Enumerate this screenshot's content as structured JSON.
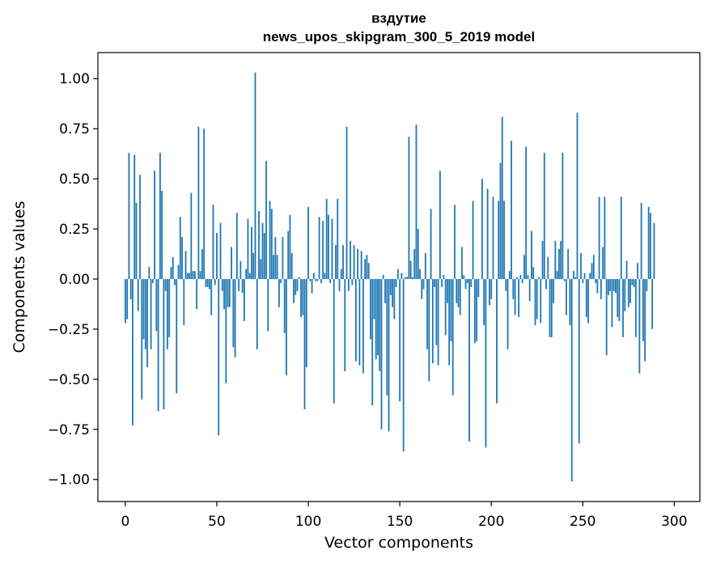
{
  "chart_data": {
    "type": "bar",
    "title_line1": "вздутие",
    "title_line2": "news_upos_skipgram_300_5_2019 model",
    "xlabel": "Vector components",
    "ylabel": "Components values",
    "xlim": [
      -15,
      314
    ],
    "ylim": [
      -1.11,
      1.13
    ],
    "xticks": [
      0,
      50,
      100,
      150,
      200,
      250,
      300
    ],
    "xtick_labels": [
      "0",
      "50",
      "100",
      "150",
      "200",
      "250",
      "300"
    ],
    "yticks": [
      1.0,
      0.75,
      0.5,
      0.25,
      0.0,
      -0.25,
      -0.5,
      -0.75,
      -1.0
    ],
    "ytick_labels": [
      "1.00",
      "0.75",
      "0.50",
      "0.25",
      "0.00",
      "−0.25",
      "−0.50",
      "−0.75",
      "−1.00"
    ],
    "bar_color": "#1f77b4",
    "values": [
      -0.22,
      -0.2,
      0.63,
      -0.1,
      -0.73,
      0.62,
      0.38,
      -0.16,
      0.52,
      -0.6,
      -0.3,
      -0.35,
      -0.44,
      0.06,
      -0.35,
      -0.02,
      0.54,
      -0.26,
      -0.66,
      0.63,
      0.44,
      -0.65,
      -0.06,
      -0.35,
      -0.29,
      0.06,
      0.11,
      -0.03,
      -0.57,
      0.07,
      0.31,
      0.21,
      -0.23,
      0.14,
      0.03,
      0.03,
      0.43,
      0.04,
      0.04,
      -0.15,
      0.76,
      0.04,
      0.15,
      0.75,
      -0.04,
      -0.04,
      -0.05,
      -0.18,
      0.37,
      -0.03,
      0.23,
      -0.78,
      0.28,
      -0.06,
      -0.15,
      -0.52,
      -0.14,
      -0.14,
      0.16,
      -0.34,
      -0.39,
      0.33,
      -0.06,
      0.09,
      -0.07,
      -0.21,
      0.05,
      0.3,
      0.03,
      0.26,
      0.13,
      1.03,
      -0.35,
      0.34,
      0.1,
      0.28,
      0.23,
      0.59,
      -0.26,
      0.39,
      0.35,
      0.12,
      0.21,
      0.12,
      -0.14,
      -0.02,
      0.21,
      -0.27,
      -0.48,
      0.24,
      0.32,
      0.13,
      -0.12,
      -0.08,
      -0.06,
      0.01,
      -0.19,
      -0.18,
      -0.65,
      -0.44,
      0.36,
      -0.01,
      -0.07,
      0.03,
      -0.01,
      -0.01,
      0.31,
      -0.02,
      0.29,
      0.03,
      0.4,
      0.32,
      -0.02,
      0.3,
      -0.62,
      0.17,
      0.4,
      -0.06,
      0.05,
      0.17,
      -0.46,
      0.76,
      -0.06,
      0.19,
      -0.03,
      0.17,
      -0.41,
      0.15,
      -0.43,
      0.14,
      -0.47,
      0.1,
      0.12,
      0.08,
      -0.3,
      -0.63,
      -0.2,
      -0.4,
      -0.38,
      -0.46,
      -0.75,
      0.02,
      -0.12,
      -0.58,
      -0.76,
      -0.08,
      -0.14,
      -0.2,
      -0.04,
      0.05,
      -0.61,
      0.03,
      -0.86,
      0.01,
      0.01,
      0.71,
      0.09,
      0.01,
      0.15,
      0.77,
      0.25,
      0.05,
      -0.1,
      -0.05,
      0.13,
      -0.35,
      -0.51,
      0.35,
      -0.42,
      -0.04,
      -0.33,
      -0.43,
      0.54,
      -0.04,
      0.02,
      -0.28,
      -0.12,
      -0.43,
      -0.31,
      -0.58,
      0.37,
      -0.12,
      -0.14,
      -0.18,
      0.16,
      0.02,
      -0.05,
      -0.02,
      -0.81,
      -0.04,
      0.39,
      -0.32,
      -0.31,
      -0.09,
      0.0,
      0.5,
      -0.23,
      -0.84,
      0.45,
      -0.13,
      -0.1,
      0.41,
      0.0,
      -0.62,
      0.39,
      0.58,
      0.81,
      0.39,
      -0.06,
      -0.35,
      0.04,
      0.69,
      -0.1,
      -0.18,
      0.01,
      -0.19,
      0.02,
      -0.02,
      0.12,
      0.66,
      0.02,
      -0.11,
      0.24,
      0.06,
      -0.23,
      -0.2,
      0.01,
      -0.22,
      0.19,
      0.63,
      -0.05,
      0.11,
      -0.29,
      -0.29,
      -0.12,
      0.19,
      0.04,
      0.15,
      0.19,
      0.63,
      -0.01,
      -0.18,
      0.15,
      -0.23,
      -1.01,
      0.04,
      0.01,
      0.83,
      -0.82,
      0.13,
      -0.02,
      0.03,
      -0.19,
      -0.22,
      0.03,
      0.08,
      0.12,
      -0.02,
      -0.07,
      0.41,
      -0.1,
      0.16,
      0.41,
      -0.38,
      -0.08,
      -0.06,
      -0.24,
      -0.06,
      -0.07,
      -0.19,
      -0.21,
      0.41,
      -0.29,
      -0.16,
      0.09,
      -0.14,
      -0.12,
      -0.03,
      -0.04,
      -0.29,
      0.08,
      -0.47,
      0.38,
      -0.31,
      -0.41,
      -0.06,
      0.36,
      0.33,
      -0.25,
      0.28
    ]
  }
}
